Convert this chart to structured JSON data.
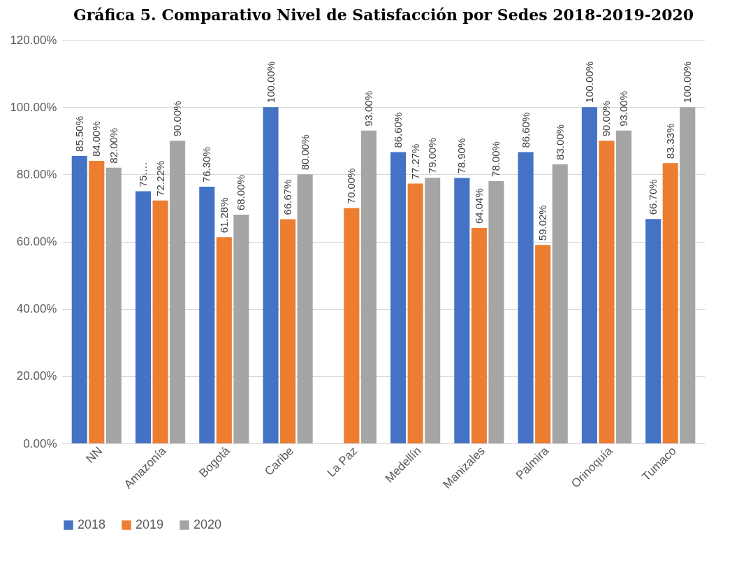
{
  "chart_data": {
    "type": "bar",
    "title": "Gráfica 5. Comparativo Nivel de Satisfacción por Sedes 2018-2019-2020",
    "categories": [
      "NN",
      "Amazonía",
      "Bogotá",
      "Caribe",
      "La Paz",
      "Medellín",
      "Manizales",
      "Palmira",
      "Orinoquía",
      "Tumaco"
    ],
    "series": [
      {
        "name": "2018",
        "color": "#4472c4",
        "values": [
          85.5,
          75,
          76.3,
          100,
          null,
          86.6,
          78.9,
          86.6,
          100,
          66.7
        ],
        "value_labels": [
          "85.50%",
          "75.…",
          "76.30%",
          "100.00%",
          null,
          "86.60%",
          "78.90%",
          "86.60%",
          "100.00%",
          "66.70%"
        ]
      },
      {
        "name": "2019",
        "color": "#ed7d31",
        "values": [
          84,
          72.22,
          61.28,
          66.67,
          70,
          77.27,
          64.04,
          59.02,
          90,
          83.33
        ],
        "value_labels": [
          "84.00%",
          "72.22%",
          "61.28%",
          "66.67%",
          "70.00%",
          "77.27%",
          "64.04%",
          "59.02%",
          "90.00%",
          "83.33%"
        ]
      },
      {
        "name": "2020",
        "color": "#a5a5a5",
        "values": [
          82,
          90,
          68,
          80,
          93,
          79,
          78,
          83,
          93,
          100
        ],
        "value_labels": [
          "82.00%",
          "90.00%",
          "68.00%",
          "80.00%",
          "93.00%",
          "79.00%",
          "78.00%",
          "83.00%",
          "93.00%",
          "100.00%"
        ]
      }
    ],
    "ylim": [
      0,
      120
    ],
    "yticks": [
      {
        "value": 0,
        "label": "0.00%"
      },
      {
        "value": 20,
        "label": "20.00%"
      },
      {
        "value": 40,
        "label": "40.00%"
      },
      {
        "value": 60,
        "label": "60.00%"
      },
      {
        "value": 80,
        "label": "80.00%"
      },
      {
        "value": 100,
        "label": "100.00%"
      },
      {
        "value": 120,
        "label": "120.00%"
      }
    ],
    "grid": "y",
    "legend": "bottom"
  }
}
